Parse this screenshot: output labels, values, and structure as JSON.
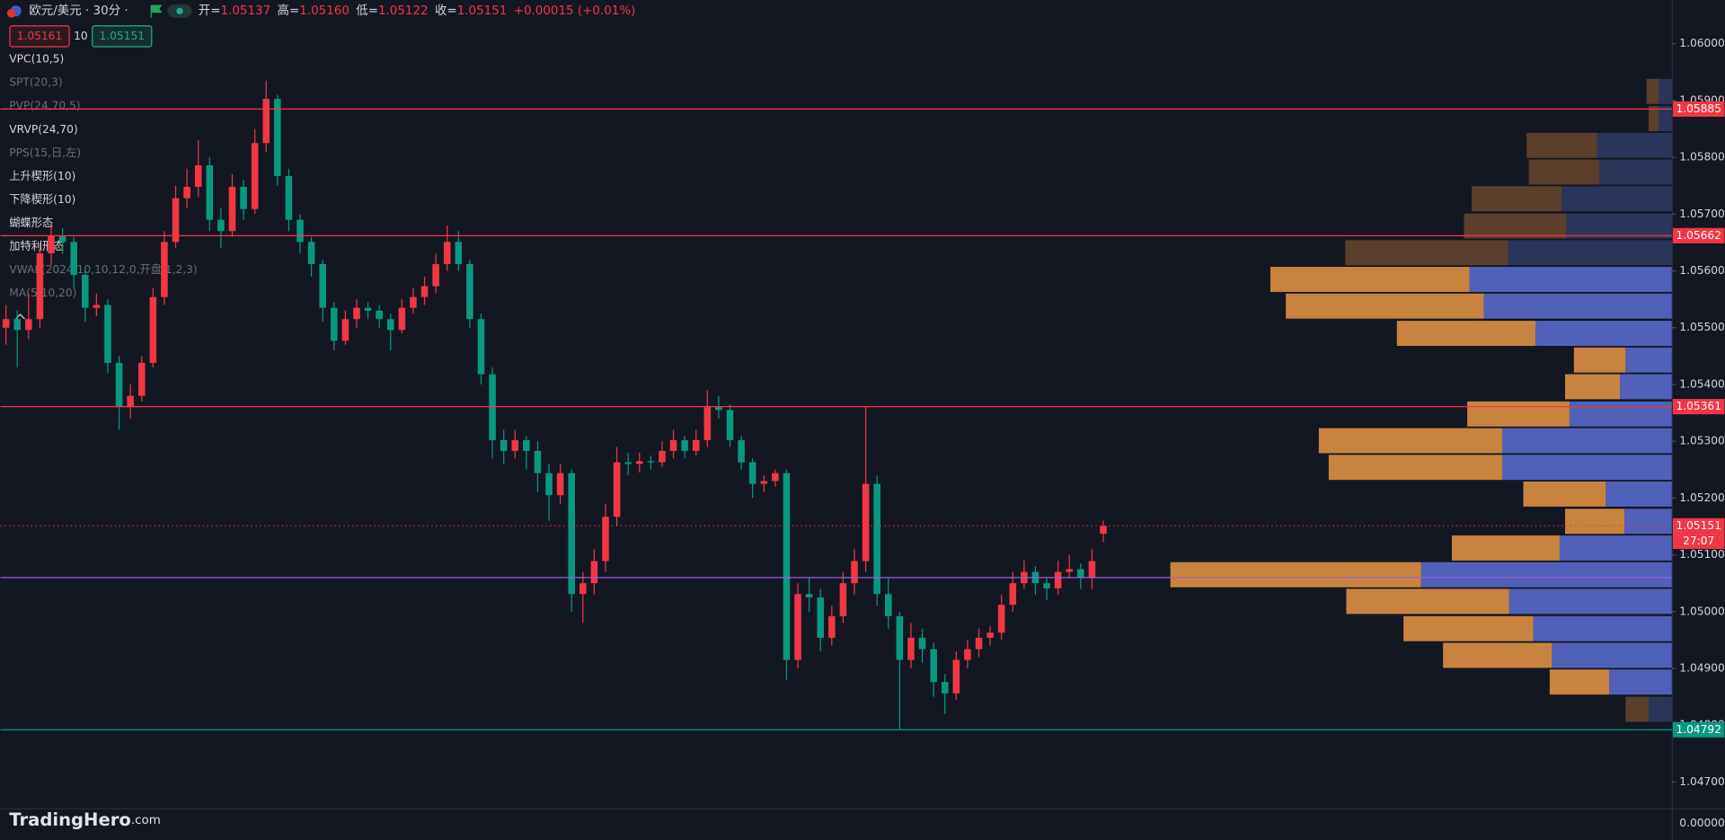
{
  "header": {
    "symbol": "欧元/美元 · 30分 ·",
    "ohlc": [
      {
        "key": "开=",
        "value": "1.05137"
      },
      {
        "key": "高=",
        "value": "1.05160"
      },
      {
        "key": "低=",
        "value": "1.05122"
      },
      {
        "key": "收=",
        "value": "1.05151"
      }
    ],
    "change": "+0.00015 (+0.01%)",
    "sell": "1.05161",
    "quantity": "10",
    "buy": "1.05151"
  },
  "indicators": [
    {
      "text": "VPC(10,5)",
      "active": true
    },
    {
      "text": "SPT(20,3)",
      "active": false
    },
    {
      "text": "PVP(24,70,5)",
      "active": false
    },
    {
      "text": "VRVP(24,70)",
      "active": true
    },
    {
      "text": "PPS(15,日,左)",
      "active": false
    },
    {
      "text": "上升楔形(10)",
      "active": true
    },
    {
      "text": "下降楔形(10)",
      "active": true
    },
    {
      "text": "蝴蝶形态",
      "active": true
    },
    {
      "text": "加特利形态",
      "active": true
    },
    {
      "text": "VWAP(2024,10,10,12,0,开盘,1,2,3)",
      "active": false
    },
    {
      "text": "MA(5,10,20)",
      "active": false
    }
  ],
  "brand": {
    "name": "TradingHero",
    "suffix": ".com"
  },
  "lower_pane_label": "0.00000",
  "chart_data": {
    "type": "candlestick",
    "up_color": "#f23645",
    "down_color": "#089981",
    "ylim": [
      1.04654,
      1.06077
    ],
    "yticks": [
      {
        "value": 1.047,
        "label": "1.04700"
      },
      {
        "value": 1.048,
        "label": "1.04800"
      },
      {
        "value": 1.049,
        "label": "1.04900"
      },
      {
        "value": 1.05,
        "label": "1.05000"
      },
      {
        "value": 1.051,
        "label": "1.05100"
      },
      {
        "value": 1.052,
        "label": "1.05200"
      },
      {
        "value": 1.053,
        "label": "1.05300"
      },
      {
        "value": 1.054,
        "label": "1.05400"
      },
      {
        "value": 1.055,
        "label": "1.05500"
      },
      {
        "value": 1.056,
        "label": "1.05600"
      },
      {
        "value": 1.057,
        "label": "1.05700"
      },
      {
        "value": 1.058,
        "label": "1.05800"
      },
      {
        "value": 1.059,
        "label": "1.05900"
      },
      {
        "value": 1.06,
        "label": "1.06000"
      }
    ],
    "ohlc": [
      [
        1.055,
        1.0554,
        1.0547,
        1.05515
      ],
      [
        1.05515,
        1.0553,
        1.0543,
        1.05496
      ],
      [
        1.05496,
        1.0556,
        1.0548,
        1.05515
      ],
      [
        1.05515,
        1.0565,
        1.055,
        1.05631
      ],
      [
        1.05631,
        1.0568,
        1.0561,
        1.05661
      ],
      [
        1.05661,
        1.05675,
        1.0563,
        1.05651
      ],
      [
        1.05651,
        1.0566,
        1.0557,
        1.05593
      ],
      [
        1.05593,
        1.05605,
        1.0551,
        1.05535
      ],
      [
        1.05535,
        1.0556,
        1.0552,
        1.0554
      ],
      [
        1.0554,
        1.0555,
        1.0542,
        1.05438
      ],
      [
        1.05438,
        1.0545,
        1.0532,
        1.0536
      ],
      [
        1.0536,
        1.054,
        1.0534,
        1.0538
      ],
      [
        1.0538,
        1.0545,
        1.0537,
        1.05438
      ],
      [
        1.05438,
        1.0557,
        1.0543,
        1.05554
      ],
      [
        1.05554,
        1.0567,
        1.0554,
        1.05651
      ],
      [
        1.05651,
        1.0575,
        1.0564,
        1.05728
      ],
      [
        1.05728,
        1.0578,
        1.0571,
        1.05748
      ],
      [
        1.05748,
        1.0583,
        1.0573,
        1.05786
      ],
      [
        1.05786,
        1.058,
        1.0567,
        1.0569
      ],
      [
        1.0569,
        1.0571,
        1.0564,
        1.0567
      ],
      [
        1.0567,
        1.0577,
        1.0566,
        1.05748
      ],
      [
        1.05748,
        1.0576,
        1.0569,
        1.05709
      ],
      [
        1.05709,
        1.0585,
        1.057,
        1.05825
      ],
      [
        1.05825,
        1.05935,
        1.0581,
        1.05903
      ],
      [
        1.05903,
        1.0591,
        1.0575,
        1.05767
      ],
      [
        1.05767,
        1.0578,
        1.0567,
        1.0569
      ],
      [
        1.0569,
        1.057,
        1.0563,
        1.05651
      ],
      [
        1.05651,
        1.0566,
        1.0559,
        1.05612
      ],
      [
        1.05612,
        1.0562,
        1.0551,
        1.05535
      ],
      [
        1.05535,
        1.05545,
        1.0546,
        1.05477
      ],
      [
        1.05477,
        1.0553,
        1.0547,
        1.05515
      ],
      [
        1.05515,
        1.0555,
        1.055,
        1.05535
      ],
      [
        1.05535,
        1.05545,
        1.05515,
        1.0553
      ],
      [
        1.0553,
        1.0554,
        1.055,
        1.05515
      ],
      [
        1.05515,
        1.05525,
        1.0546,
        1.05496
      ],
      [
        1.05496,
        1.0555,
        1.0549,
        1.05535
      ],
      [
        1.05535,
        1.0557,
        1.05525,
        1.05554
      ],
      [
        1.05554,
        1.0559,
        1.0554,
        1.05573
      ],
      [
        1.05573,
        1.0563,
        1.0556,
        1.05612
      ],
      [
        1.05612,
        1.0568,
        1.056,
        1.05651
      ],
      [
        1.05651,
        1.0567,
        1.056,
        1.05612
      ],
      [
        1.05612,
        1.0562,
        1.055,
        1.05515
      ],
      [
        1.05515,
        1.05525,
        1.054,
        1.05418
      ],
      [
        1.05418,
        1.0543,
        1.0527,
        1.05302
      ],
      [
        1.05302,
        1.0532,
        1.0526,
        1.05283
      ],
      [
        1.05283,
        1.0532,
        1.0527,
        1.05302
      ],
      [
        1.05302,
        1.0531,
        1.0525,
        1.05283
      ],
      [
        1.05283,
        1.053,
        1.0521,
        1.05244
      ],
      [
        1.05244,
        1.0526,
        1.0516,
        1.05205
      ],
      [
        1.05205,
        1.0526,
        1.0519,
        1.05244
      ],
      [
        1.05244,
        1.0525,
        1.05,
        1.05031
      ],
      [
        1.05031,
        1.0507,
        1.0498,
        1.0505
      ],
      [
        1.0505,
        1.0511,
        1.0503,
        1.05089
      ],
      [
        1.05089,
        1.0519,
        1.0507,
        1.05167
      ],
      [
        1.05167,
        1.0529,
        1.0515,
        1.05263
      ],
      [
        1.05263,
        1.0528,
        1.0524,
        1.0526
      ],
      [
        1.0526,
        1.0528,
        1.05245,
        1.05265
      ],
      [
        1.05265,
        1.05275,
        1.0525,
        1.05263
      ],
      [
        1.05263,
        1.053,
        1.05255,
        1.05283
      ],
      [
        1.05283,
        1.0532,
        1.0527,
        1.05302
      ],
      [
        1.05302,
        1.0531,
        1.0527,
        1.05283
      ],
      [
        1.05283,
        1.0532,
        1.05275,
        1.05302
      ],
      [
        1.05302,
        1.0539,
        1.0529,
        1.0536
      ],
      [
        1.0536,
        1.0538,
        1.0534,
        1.05355
      ],
      [
        1.05355,
        1.05365,
        1.0529,
        1.05302
      ],
      [
        1.05302,
        1.0531,
        1.0525,
        1.05263
      ],
      [
        1.05263,
        1.0527,
        1.052,
        1.05225
      ],
      [
        1.05225,
        1.0524,
        1.0521,
        1.0523
      ],
      [
        1.0523,
        1.0525,
        1.0522,
        1.05244
      ],
      [
        1.05244,
        1.0525,
        1.0488,
        1.04915
      ],
      [
        1.04915,
        1.0505,
        1.049,
        1.05031
      ],
      [
        1.05031,
        1.0506,
        1.05,
        1.05025
      ],
      [
        1.05025,
        1.0504,
        1.0493,
        1.04954
      ],
      [
        1.04954,
        1.0501,
        1.0494,
        1.04992
      ],
      [
        1.04992,
        1.0507,
        1.0498,
        1.0505
      ],
      [
        1.0505,
        1.0511,
        1.0503,
        1.05089
      ],
      [
        1.05089,
        1.05361,
        1.0507,
        1.05225
      ],
      [
        1.05225,
        1.0524,
        1.0501,
        1.05031
      ],
      [
        1.05031,
        1.0506,
        1.0497,
        1.04992
      ],
      [
        1.04992,
        1.05,
        1.04792,
        1.04915
      ],
      [
        1.04915,
        1.0498,
        1.049,
        1.04954
      ],
      [
        1.04954,
        1.0497,
        1.0491,
        1.04934
      ],
      [
        1.04934,
        1.04945,
        1.0485,
        1.04876
      ],
      [
        1.04876,
        1.0489,
        1.0482,
        1.04856
      ],
      [
        1.04856,
        1.0493,
        1.04845,
        1.04915
      ],
      [
        1.04915,
        1.0495,
        1.049,
        1.04934
      ],
      [
        1.04934,
        1.0497,
        1.0492,
        1.04954
      ],
      [
        1.04954,
        1.04975,
        1.0494,
        1.04963
      ],
      [
        1.04963,
        1.0503,
        1.0495,
        1.05012
      ],
      [
        1.05012,
        1.0507,
        1.05,
        1.0505
      ],
      [
        1.0505,
        1.0509,
        1.0504,
        1.0507
      ],
      [
        1.0507,
        1.0508,
        1.0503,
        1.0505
      ],
      [
        1.0505,
        1.0506,
        1.0502,
        1.05041
      ],
      [
        1.05041,
        1.0509,
        1.0503,
        1.0507
      ],
      [
        1.0507,
        1.051,
        1.0506,
        1.05075
      ],
      [
        1.05075,
        1.05085,
        1.0504,
        1.0506
      ],
      [
        1.0506,
        1.0511,
        1.0504,
        1.05089
      ],
      [
        1.05137,
        1.0516,
        1.05122,
        1.05151
      ]
    ],
    "price_lines": [
      {
        "value": 1.05885,
        "label": "1.05885",
        "color": "#f23645",
        "style": "solid"
      },
      {
        "value": 1.05662,
        "label": "1.05662",
        "color": "#f23645",
        "style": "solid"
      },
      {
        "value": 1.05361,
        "label": "1.05361",
        "color": "#f23645",
        "style": "solid"
      },
      {
        "value": 1.05151,
        "label": "1.05151",
        "countdown": "27:07",
        "color": "#f23645",
        "style": "dotted"
      },
      {
        "value": 1.0506,
        "color": "#9c5fd6",
        "style": "solid"
      },
      {
        "value": 1.04792,
        "label": "1.04792",
        "color": "#089981",
        "style": "solid"
      }
    ],
    "volume_profile": {
      "up_color": "#c8843f",
      "down_color": "#5160b8",
      "dim_up_color": "#5a3f2d",
      "dim_down_color": "#2b3559",
      "rows": [
        {
          "price": 1.05916,
          "up": 11,
          "down": 12,
          "value_area": false
        },
        {
          "price": 1.05868,
          "up": 9,
          "down": 12,
          "value_area": false
        },
        {
          "price": 1.05821,
          "up": 64,
          "down": 68,
          "value_area": false
        },
        {
          "price": 1.05774,
          "up": 64,
          "down": 66,
          "value_area": false
        },
        {
          "price": 1.05727,
          "up": 82,
          "down": 100,
          "value_area": false
        },
        {
          "price": 1.05679,
          "up": 93,
          "down": 96,
          "value_area": false
        },
        {
          "price": 1.05632,
          "up": 148,
          "down": 149,
          "value_area": false
        },
        {
          "price": 1.05585,
          "up": 181,
          "down": 184,
          "value_area": true
        },
        {
          "price": 1.05538,
          "up": 180,
          "down": 171,
          "value_area": true
        },
        {
          "price": 1.0549,
          "up": 126,
          "down": 124,
          "value_area": true
        },
        {
          "price": 1.05443,
          "up": 47,
          "down": 42,
          "value_area": true
        },
        {
          "price": 1.05396,
          "up": 50,
          "down": 47,
          "value_area": true
        },
        {
          "price": 1.05348,
          "up": 93,
          "down": 93,
          "value_area": true
        },
        {
          "price": 1.05301,
          "up": 167,
          "down": 154,
          "value_area": true
        },
        {
          "price": 1.05254,
          "up": 158,
          "down": 154,
          "value_area": true
        },
        {
          "price": 1.05207,
          "up": 75,
          "down": 60,
          "value_area": true
        },
        {
          "price": 1.05159,
          "up": 54,
          "down": 43,
          "value_area": true
        },
        {
          "price": 1.05112,
          "up": 98,
          "down": 102,
          "value_area": true
        },
        {
          "price": 1.05065,
          "up": 228,
          "down": 228,
          "value_area": true
        },
        {
          "price": 1.05018,
          "up": 148,
          "down": 148,
          "value_area": true
        },
        {
          "price": 1.0497,
          "up": 118,
          "down": 126,
          "value_area": true
        },
        {
          "price": 1.04923,
          "up": 99,
          "down": 109,
          "value_area": true
        },
        {
          "price": 1.04876,
          "up": 54,
          "down": 57,
          "value_area": true
        },
        {
          "price": 1.04828,
          "up": 21,
          "down": 21,
          "value_area": false
        }
      ]
    }
  }
}
